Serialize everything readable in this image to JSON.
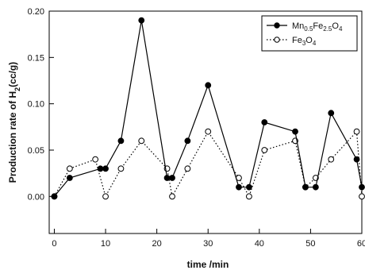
{
  "chart_data": {
    "type": "line",
    "xlabel": "time /min",
    "ylabel": "Production rate of H",
    "ylabel_sub": "2",
    "ylabel_tail": "(cc/g)",
    "xlim": [
      -1,
      60
    ],
    "ylim": [
      -0.04,
      0.2
    ],
    "xticks": [
      0,
      10,
      20,
      30,
      40,
      50,
      60
    ],
    "xtick_labels": [
      "0",
      "10",
      "20",
      "30",
      "40",
      "50",
      "60"
    ],
    "yticks": [
      0.0,
      0.05,
      0.1,
      0.15,
      0.2
    ],
    "ytick_labels": [
      "0.00",
      "0.05",
      "0.10",
      "0.15",
      "0.20"
    ],
    "grid": false,
    "legend_position": "top-right",
    "series": [
      {
        "name": "Mn0.5Fe2.5O4",
        "legend": {
          "parts": [
            {
              "t": "Mn",
              "s": ""
            },
            {
              "t": "0.5",
              "s": "sub"
            },
            {
              "t": "Fe",
              "s": ""
            },
            {
              "t": "2.5",
              "s": "sub"
            },
            {
              "t": "O",
              "s": ""
            },
            {
              "t": "4",
              "s": "sub"
            }
          ]
        },
        "marker": "filled-circle",
        "line": "solid",
        "color": "#000000",
        "x": [
          0,
          3,
          9,
          10,
          13,
          17,
          22,
          23,
          26,
          30,
          36,
          38,
          41,
          47,
          49,
          51,
          54,
          59,
          60
        ],
        "y": [
          0.0,
          0.02,
          0.03,
          0.03,
          0.06,
          0.19,
          0.02,
          0.02,
          0.06,
          0.12,
          0.01,
          0.01,
          0.08,
          0.07,
          0.01,
          0.01,
          0.09,
          0.04,
          0.01
        ]
      },
      {
        "name": "Fe3O4",
        "legend": {
          "parts": [
            {
              "t": "Fe",
              "s": ""
            },
            {
              "t": "3",
              "s": "sub"
            },
            {
              "t": "O",
              "s": ""
            },
            {
              "t": "4",
              "s": "sub"
            }
          ]
        },
        "marker": "open-circle",
        "line": "dotted",
        "color": "#000000",
        "x": [
          0,
          3,
          8,
          10,
          13,
          17,
          22,
          23,
          26,
          30,
          36,
          38,
          41,
          47,
          49,
          51,
          54,
          59,
          60
        ],
        "y": [
          0.0,
          0.03,
          0.04,
          0.0,
          0.03,
          0.06,
          0.03,
          0.0,
          0.03,
          0.07,
          0.02,
          0.0,
          0.05,
          0.06,
          0.01,
          0.02,
          0.04,
          0.07,
          0.0
        ]
      }
    ]
  }
}
